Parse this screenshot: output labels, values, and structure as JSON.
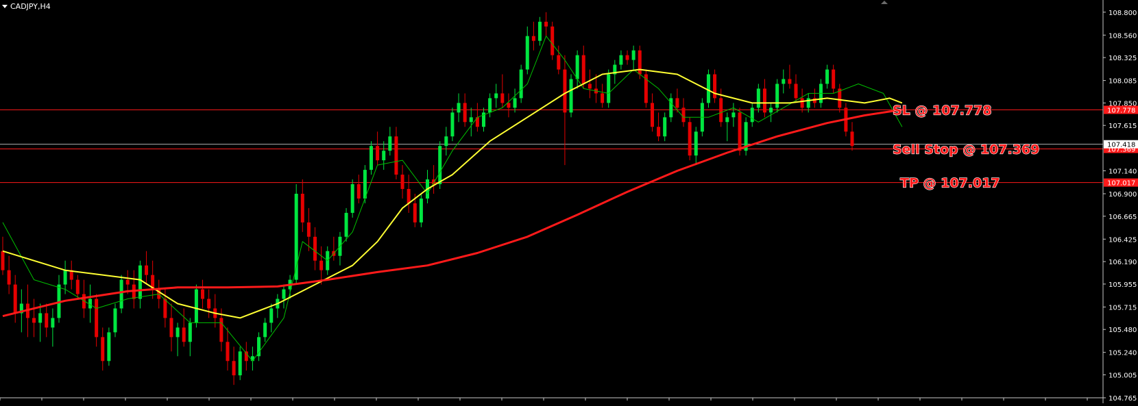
{
  "header": {
    "symbol_label": "CADJPY,H4"
  },
  "colors": {
    "background": "#000000",
    "bull": "#00e640",
    "bear": "#e60000",
    "ma_fast": "#ffff33",
    "ma_slow": "#ff1a1a",
    "ma_thin": "#00c000",
    "level_line": "#ff1a1a",
    "current_price_line": "#b0b0b0",
    "axis_text": "#ffffff"
  },
  "chart_data": {
    "type": "candlestick",
    "symbol": "CADJPY",
    "timeframe": "H4",
    "grid": false,
    "ylim": [
      104.765,
      108.87
    ],
    "y_ticks": [
      "108.800",
      "108.560",
      "108.325",
      "108.085",
      "107.850",
      "107.615",
      "107.140",
      "106.900",
      "106.665",
      "106.425",
      "106.190",
      "105.955",
      "105.715",
      "105.480",
      "105.240",
      "105.005",
      "104.765"
    ],
    "candles": [
      [
        106.3,
        106.45,
        106.05,
        106.1
      ],
      [
        106.1,
        106.25,
        105.85,
        105.95
      ],
      [
        105.95,
        106.05,
        105.55,
        105.65
      ],
      [
        105.65,
        105.9,
        105.45,
        105.75
      ],
      [
        105.75,
        105.95,
        105.4,
        105.6
      ],
      [
        105.6,
        105.8,
        105.4,
        105.55
      ],
      [
        105.55,
        105.75,
        105.35,
        105.65
      ],
      [
        105.65,
        105.75,
        105.4,
        105.5
      ],
      [
        105.5,
        105.7,
        105.3,
        105.6
      ],
      [
        105.6,
        106.05,
        105.55,
        105.95
      ],
      [
        105.95,
        106.2,
        105.85,
        106.1
      ],
      [
        106.1,
        106.2,
        105.9,
        106.0
      ],
      [
        106.0,
        106.05,
        105.8,
        105.85
      ],
      [
        105.85,
        106.0,
        105.6,
        105.7
      ],
      [
        105.7,
        105.95,
        105.55,
        105.8
      ],
      [
        105.8,
        105.85,
        105.3,
        105.4
      ],
      [
        105.4,
        105.5,
        105.05,
        105.15
      ],
      [
        105.15,
        105.5,
        105.1,
        105.45
      ],
      [
        105.45,
        105.75,
        105.4,
        105.7
      ],
      [
        105.7,
        106.05,
        105.65,
        106.0
      ],
      [
        106.0,
        106.1,
        105.85,
        105.95
      ],
      [
        105.95,
        106.1,
        105.7,
        105.8
      ],
      [
        105.8,
        106.2,
        105.7,
        106.15
      ],
      [
        106.15,
        106.3,
        105.95,
        106.05
      ],
      [
        106.05,
        106.2,
        105.8,
        105.9
      ],
      [
        105.9,
        106.0,
        105.7,
        105.8
      ],
      [
        105.8,
        105.9,
        105.5,
        105.6
      ],
      [
        105.6,
        105.75,
        105.25,
        105.4
      ],
      [
        105.4,
        105.55,
        105.2,
        105.5
      ],
      [
        105.5,
        105.7,
        105.3,
        105.35
      ],
      [
        105.35,
        105.6,
        105.2,
        105.55
      ],
      [
        105.55,
        105.95,
        105.5,
        105.9
      ],
      [
        105.9,
        106.0,
        105.7,
        105.8
      ],
      [
        105.8,
        105.9,
        105.6,
        105.7
      ],
      [
        105.7,
        105.85,
        105.5,
        105.6
      ],
      [
        105.6,
        105.7,
        105.25,
        105.35
      ],
      [
        105.35,
        105.5,
        105.05,
        105.15
      ],
      [
        105.15,
        105.3,
        104.9,
        105.0
      ],
      [
        105.0,
        105.3,
        104.95,
        105.25
      ],
      [
        105.25,
        105.35,
        105.05,
        105.15
      ],
      [
        105.15,
        105.3,
        105.05,
        105.2
      ],
      [
        105.2,
        105.45,
        105.15,
        105.4
      ],
      [
        105.4,
        105.6,
        105.35,
        105.55
      ],
      [
        105.55,
        105.75,
        105.45,
        105.7
      ],
      [
        105.7,
        105.85,
        105.6,
        105.8
      ],
      [
        105.8,
        105.95,
        105.7,
        105.9
      ],
      [
        105.9,
        106.05,
        105.8,
        106.0
      ],
      [
        106.0,
        107.0,
        105.95,
        106.9
      ],
      [
        106.9,
        107.05,
        106.5,
        106.6
      ],
      [
        106.6,
        106.75,
        106.3,
        106.45
      ],
      [
        106.45,
        106.55,
        106.1,
        106.2
      ],
      [
        106.2,
        106.35,
        105.95,
        106.1
      ],
      [
        106.1,
        106.35,
        106.05,
        106.3
      ],
      [
        106.3,
        106.45,
        106.2,
        106.25
      ],
      [
        106.25,
        106.5,
        106.15,
        106.45
      ],
      [
        106.45,
        106.75,
        106.4,
        106.7
      ],
      [
        106.7,
        107.05,
        106.65,
        107.0
      ],
      [
        107.0,
        107.1,
        106.8,
        106.85
      ],
      [
        106.85,
        107.2,
        106.8,
        107.15
      ],
      [
        107.15,
        107.45,
        107.1,
        107.4
      ],
      [
        107.4,
        107.55,
        107.2,
        107.25
      ],
      [
        107.25,
        107.45,
        107.15,
        107.35
      ],
      [
        107.35,
        107.6,
        107.3,
        107.5
      ],
      [
        107.5,
        107.6,
        107.05,
        107.1
      ],
      [
        107.1,
        107.2,
        106.85,
        106.95
      ],
      [
        106.95,
        107.1,
        106.7,
        106.8
      ],
      [
        106.8,
        106.9,
        106.55,
        106.6
      ],
      [
        106.6,
        106.9,
        106.55,
        106.85
      ],
      [
        106.85,
        107.15,
        106.8,
        107.05
      ],
      [
        107.05,
        107.2,
        106.9,
        107.0
      ],
      [
        107.0,
        107.45,
        106.95,
        107.4
      ],
      [
        107.4,
        107.6,
        107.3,
        107.5
      ],
      [
        107.5,
        107.8,
        107.45,
        107.75
      ],
      [
        107.75,
        107.95,
        107.65,
        107.85
      ],
      [
        107.85,
        107.95,
        107.6,
        107.65
      ],
      [
        107.65,
        107.8,
        107.5,
        107.7
      ],
      [
        107.7,
        107.85,
        107.55,
        107.6
      ],
      [
        107.6,
        107.8,
        107.55,
        107.75
      ],
      [
        107.75,
        107.95,
        107.7,
        107.9
      ],
      [
        107.9,
        108.05,
        107.8,
        107.95
      ],
      [
        107.95,
        108.15,
        107.8,
        107.85
      ],
      [
        107.85,
        107.95,
        107.7,
        107.8
      ],
      [
        107.8,
        108.0,
        107.75,
        107.9
      ],
      [
        107.9,
        108.25,
        107.85,
        108.2
      ],
      [
        108.2,
        108.65,
        108.15,
        108.55
      ],
      [
        108.55,
        108.7,
        108.4,
        108.5
      ],
      [
        108.5,
        108.75,
        108.45,
        108.7
      ],
      [
        108.7,
        108.8,
        108.55,
        108.65
      ],
      [
        108.65,
        108.7,
        108.3,
        108.35
      ],
      [
        108.35,
        108.45,
        108.15,
        108.2
      ],
      [
        108.2,
        108.35,
        107.2,
        107.75
      ],
      [
        107.75,
        108.15,
        107.7,
        108.1
      ],
      [
        108.1,
        108.4,
        108.0,
        108.35
      ],
      [
        108.35,
        108.45,
        108.0,
        108.05
      ],
      [
        108.05,
        108.2,
        107.9,
        108.0
      ],
      [
        108.0,
        108.15,
        107.85,
        107.95
      ],
      [
        107.95,
        108.05,
        107.8,
        107.85
      ],
      [
        107.85,
        108.2,
        107.8,
        108.15
      ],
      [
        108.15,
        108.3,
        108.05,
        108.25
      ],
      [
        108.25,
        108.4,
        108.2,
        108.35
      ],
      [
        108.35,
        108.4,
        108.25,
        108.3
      ],
      [
        108.3,
        108.45,
        108.2,
        108.4
      ],
      [
        108.4,
        108.45,
        108.1,
        108.15
      ],
      [
        108.15,
        108.2,
        107.8,
        107.85
      ],
      [
        107.85,
        107.95,
        107.55,
        107.6
      ],
      [
        107.6,
        107.75,
        107.45,
        107.5
      ],
      [
        107.5,
        107.75,
        107.45,
        107.7
      ],
      [
        107.7,
        107.95,
        107.65,
        107.9
      ],
      [
        107.9,
        108.0,
        107.75,
        107.8
      ],
      [
        107.8,
        107.9,
        107.6,
        107.65
      ],
      [
        107.65,
        107.7,
        107.25,
        107.3
      ],
      [
        107.3,
        107.6,
        107.2,
        107.55
      ],
      [
        107.55,
        107.9,
        107.5,
        107.85
      ],
      [
        107.85,
        108.2,
        107.8,
        108.15
      ],
      [
        108.15,
        108.2,
        107.85,
        107.9
      ],
      [
        107.9,
        108.0,
        107.6,
        107.65
      ],
      [
        107.65,
        107.75,
        107.45,
        107.7
      ],
      [
        107.7,
        107.85,
        107.6,
        107.75
      ],
      [
        107.75,
        107.8,
        107.3,
        107.35
      ],
      [
        107.35,
        107.7,
        107.3,
        107.65
      ],
      [
        107.65,
        107.85,
        107.6,
        107.8
      ],
      [
        107.8,
        108.05,
        107.75,
        108.0
      ],
      [
        108.0,
        108.1,
        107.7,
        107.75
      ],
      [
        107.75,
        107.85,
        107.65,
        107.8
      ],
      [
        107.8,
        108.1,
        107.75,
        108.05
      ],
      [
        108.05,
        108.2,
        107.95,
        108.1
      ],
      [
        108.1,
        108.25,
        108.0,
        108.05
      ],
      [
        108.05,
        108.15,
        107.85,
        107.9
      ],
      [
        107.9,
        108.0,
        107.75,
        107.8
      ],
      [
        107.8,
        107.95,
        107.75,
        107.9
      ],
      [
        107.9,
        108.0,
        107.8,
        107.85
      ],
      [
        107.85,
        108.1,
        107.8,
        108.05
      ],
      [
        108.05,
        108.25,
        108.0,
        108.2
      ],
      [
        108.2,
        108.25,
        107.95,
        108.0
      ],
      [
        108.0,
        108.05,
        107.75,
        107.8
      ],
      [
        107.8,
        107.85,
        107.5,
        107.55
      ],
      [
        107.55,
        107.65,
        107.35,
        107.4
      ]
    ],
    "moving_averages": [
      {
        "name": "fast",
        "color_key": "ma_thin",
        "points": [
          [
            0,
            106.6
          ],
          [
            5,
            106.0
          ],
          [
            10,
            105.9
          ],
          [
            15,
            105.7
          ],
          [
            20,
            105.8
          ],
          [
            25,
            105.85
          ],
          [
            30,
            105.55
          ],
          [
            35,
            105.55
          ],
          [
            40,
            105.15
          ],
          [
            45,
            105.6
          ],
          [
            48,
            106.4
          ],
          [
            52,
            106.2
          ],
          [
            56,
            106.5
          ],
          [
            60,
            107.2
          ],
          [
            64,
            107.25
          ],
          [
            68,
            106.9
          ],
          [
            72,
            107.35
          ],
          [
            76,
            107.7
          ],
          [
            80,
            107.8
          ],
          [
            84,
            108.05
          ],
          [
            87,
            108.55
          ],
          [
            90,
            108.3
          ],
          [
            93,
            108.0
          ],
          [
            97,
            107.95
          ],
          [
            101,
            108.2
          ],
          [
            105,
            108.0
          ],
          [
            109,
            107.7
          ],
          [
            113,
            107.7
          ],
          [
            117,
            107.8
          ],
          [
            121,
            107.65
          ],
          [
            125,
            107.8
          ],
          [
            129,
            107.95
          ],
          [
            133,
            107.95
          ],
          [
            137,
            108.05
          ],
          [
            141,
            107.95
          ],
          [
            144,
            107.6
          ]
        ]
      },
      {
        "name": "mid",
        "color_key": "ma_fast",
        "points": [
          [
            0,
            106.3
          ],
          [
            10,
            106.1
          ],
          [
            16,
            106.05
          ],
          [
            22,
            106.0
          ],
          [
            28,
            105.75
          ],
          [
            34,
            105.65
          ],
          [
            38,
            105.6
          ],
          [
            44,
            105.75
          ],
          [
            50,
            105.95
          ],
          [
            56,
            106.15
          ],
          [
            60,
            106.4
          ],
          [
            64,
            106.75
          ],
          [
            68,
            106.95
          ],
          [
            72,
            107.1
          ],
          [
            78,
            107.45
          ],
          [
            84,
            107.7
          ],
          [
            90,
            107.95
          ],
          [
            96,
            108.15
          ],
          [
            102,
            108.2
          ],
          [
            108,
            108.15
          ],
          [
            114,
            107.95
          ],
          [
            120,
            107.85
          ],
          [
            126,
            107.85
          ],
          [
            132,
            107.9
          ],
          [
            138,
            107.85
          ],
          [
            142,
            107.9
          ],
          [
            144,
            107.85
          ]
        ]
      },
      {
        "name": "slow",
        "color_key": "ma_slow",
        "points": [
          [
            0,
            105.62
          ],
          [
            10,
            105.78
          ],
          [
            20,
            105.88
          ],
          [
            28,
            105.92
          ],
          [
            36,
            105.92
          ],
          [
            44,
            105.93
          ],
          [
            52,
            106.0
          ],
          [
            60,
            106.08
          ],
          [
            68,
            106.15
          ],
          [
            76,
            106.28
          ],
          [
            84,
            106.45
          ],
          [
            92,
            106.68
          ],
          [
            100,
            106.92
          ],
          [
            108,
            107.14
          ],
          [
            116,
            107.33
          ],
          [
            124,
            107.5
          ],
          [
            132,
            107.64
          ],
          [
            138,
            107.72
          ],
          [
            144,
            107.78
          ]
        ]
      }
    ],
    "horizontal_levels": [
      {
        "key": "sl",
        "price": 107.778,
        "axis_label": "107.778",
        "text": "SL @ 107.778"
      },
      {
        "key": "sell_stop",
        "price": 107.369,
        "axis_label": "107.369",
        "text": "Sell Stop @ 107.369"
      },
      {
        "key": "tp",
        "price": 107.017,
        "axis_label": "107.017",
        "text": "TP @ 107.017"
      }
    ],
    "current_price": {
      "price": 107.418,
      "axis_label": "107.418"
    }
  }
}
